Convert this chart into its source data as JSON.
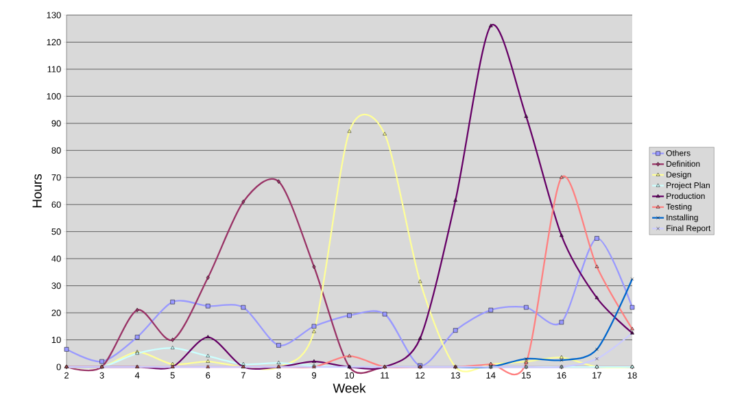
{
  "chart_data": {
    "type": "line",
    "xlabel": "Week",
    "ylabel": "Hours",
    "x": [
      2,
      3,
      4,
      5,
      6,
      7,
      8,
      9,
      10,
      11,
      12,
      13,
      14,
      15,
      16,
      17,
      18
    ],
    "xlim": [
      2,
      18
    ],
    "xticks": [
      2,
      3,
      4,
      5,
      6,
      7,
      8,
      9,
      10,
      11,
      12,
      13,
      14,
      15,
      16,
      17,
      18
    ],
    "ylim": [
      0,
      130
    ],
    "yticks": [
      0,
      10,
      20,
      30,
      40,
      50,
      60,
      70,
      80,
      90,
      100,
      110,
      120,
      130
    ],
    "grid": "y",
    "legend": "right",
    "line_style": "solid",
    "series": [
      {
        "name": "Others",
        "color": "#9999ff",
        "marker": "square",
        "values": [
          6.5,
          2,
          11,
          24,
          22.5,
          22,
          8,
          15,
          19,
          19.5,
          0.5,
          13.5,
          21,
          22,
          16.5,
          47.5,
          22
        ]
      },
      {
        "name": "Definition",
        "color": "#993366",
        "marker": "diamond",
        "values": [
          0,
          0,
          21,
          10,
          33,
          61,
          68.5,
          37,
          0,
          0,
          0,
          0,
          0,
          0,
          0,
          0,
          0
        ]
      },
      {
        "name": "Design",
        "color": "#ffff99",
        "marker": "triangle",
        "values": [
          0,
          0,
          5.5,
          1,
          2,
          0,
          0,
          13,
          87,
          86,
          31.5,
          0,
          1,
          2,
          3.5,
          0,
          0
        ]
      },
      {
        "name": "Project Plan",
        "color": "#ccffff",
        "marker": "triangle",
        "values": [
          0,
          0,
          5,
          7,
          4,
          1,
          1.5,
          0.5,
          0,
          0,
          0,
          0,
          0,
          0,
          0,
          0,
          0
        ]
      },
      {
        "name": "Production",
        "color": "#660066",
        "marker": "triangle",
        "values": [
          0,
          0,
          0,
          0,
          11,
          0,
          0,
          2,
          0,
          0,
          10.5,
          61.5,
          126,
          92.5,
          48.5,
          25.5,
          12.5
        ]
      },
      {
        "name": "Testing",
        "color": "#ff8080",
        "marker": "triangle",
        "values": [
          0,
          0,
          0,
          0,
          0,
          0,
          0,
          0,
          4,
          0,
          0,
          0,
          1,
          1.5,
          70,
          37,
          14
        ]
      },
      {
        "name": "Installing",
        "color": "#0066cc",
        "marker": "cross",
        "values": [
          null,
          null,
          null,
          null,
          null,
          null,
          null,
          null,
          null,
          null,
          null,
          0,
          0,
          3,
          2.5,
          6.5,
          32.5
        ]
      },
      {
        "name": "Final Report",
        "color": "#ccccff",
        "marker": "cross",
        "values": [
          0,
          0,
          0,
          0,
          0,
          0,
          0,
          0,
          0,
          0,
          0,
          0,
          0,
          0,
          0,
          3,
          12.5
        ]
      }
    ]
  }
}
